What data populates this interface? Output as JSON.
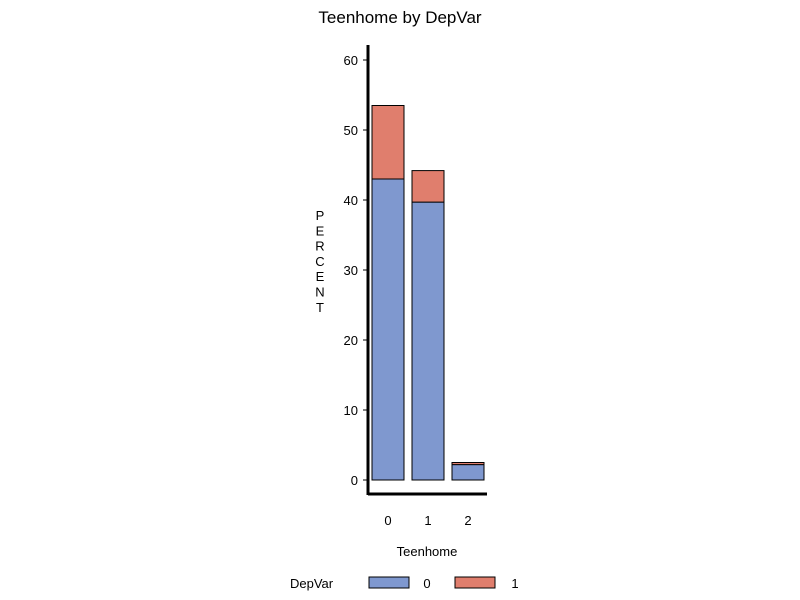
{
  "chart_data": {
    "type": "bar",
    "stacked": true,
    "title": "Teenhome by DepVar",
    "xlabel": "Teenhome",
    "ylabel": "PERCENT",
    "categories": [
      "0",
      "1",
      "2"
    ],
    "series": [
      {
        "name": "0",
        "color": "#7f98cf",
        "values": [
          43.0,
          39.7,
          2.2
        ]
      },
      {
        "name": "1",
        "color": "#e07e6d",
        "values": [
          10.5,
          4.5,
          0.3
        ]
      }
    ],
    "ylim": [
      0,
      62
    ],
    "yticks": [
      "0",
      "10",
      "20",
      "30",
      "40",
      "50",
      "60"
    ],
    "legend": {
      "title": "DepVar",
      "entries": [
        "0",
        "1"
      ],
      "placement": "bottom"
    },
    "grid": false
  }
}
